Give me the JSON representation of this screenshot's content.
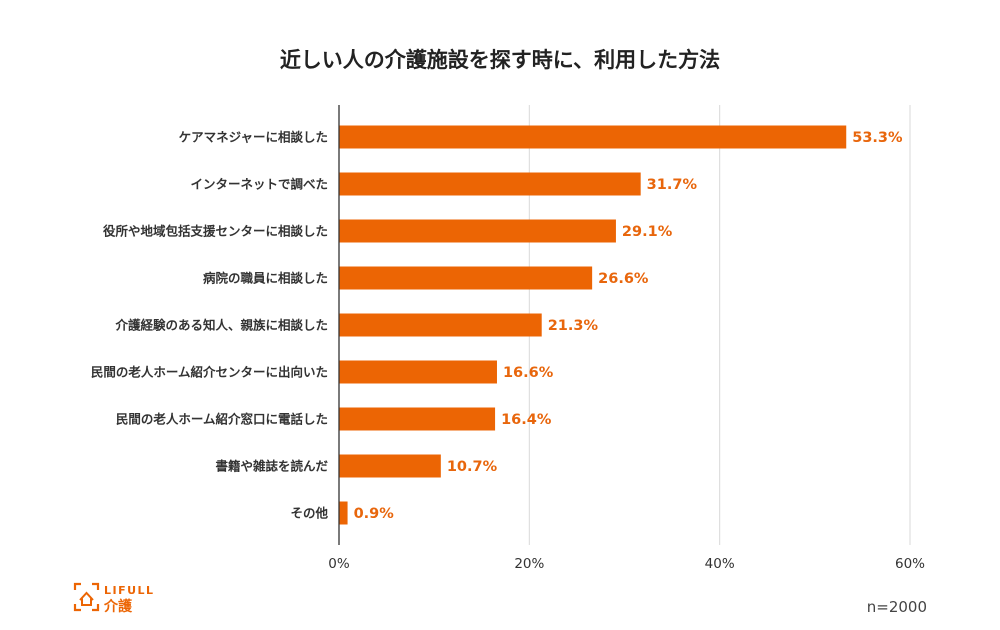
{
  "chart_data": {
    "type": "bar",
    "orientation": "horizontal",
    "title": "近しい人の介護施設を探す時に、利用した方法",
    "categories": [
      "ケアマネジャーに相談した",
      "インターネットで調べた",
      "役所や地域包括支援センターに相談した",
      "病院の職員に相談した",
      "介護経験のある知人、親族に相談した",
      "民間の老人ホーム紹介センターに出向いた",
      "民間の老人ホーム紹介窓口に電話した",
      "書籍や雑誌を読んだ",
      "その他"
    ],
    "values": [
      53.3,
      31.7,
      29.1,
      26.6,
      21.3,
      16.6,
      16.4,
      10.7,
      0.9
    ],
    "value_labels": [
      "53.3%",
      "31.7%",
      "29.1%",
      "26.6%",
      "21.3%",
      "16.6%",
      "16.4%",
      "10.7%",
      "0.9%"
    ],
    "xlim": [
      0,
      60
    ],
    "xticks": [
      0,
      20,
      40,
      60
    ],
    "xtick_labels": [
      "0%",
      "20%",
      "40%",
      "60%"
    ],
    "xlabel": "",
    "ylabel": "",
    "grid": true,
    "legend": "none",
    "bar_color": "#EC6504",
    "label_color": "#E8660C",
    "grid_color": "#D9D9D9",
    "sample_note": "n=2000"
  },
  "logo": {
    "brand": "LIFULL",
    "product": "介護",
    "color": "#EC6504"
  }
}
